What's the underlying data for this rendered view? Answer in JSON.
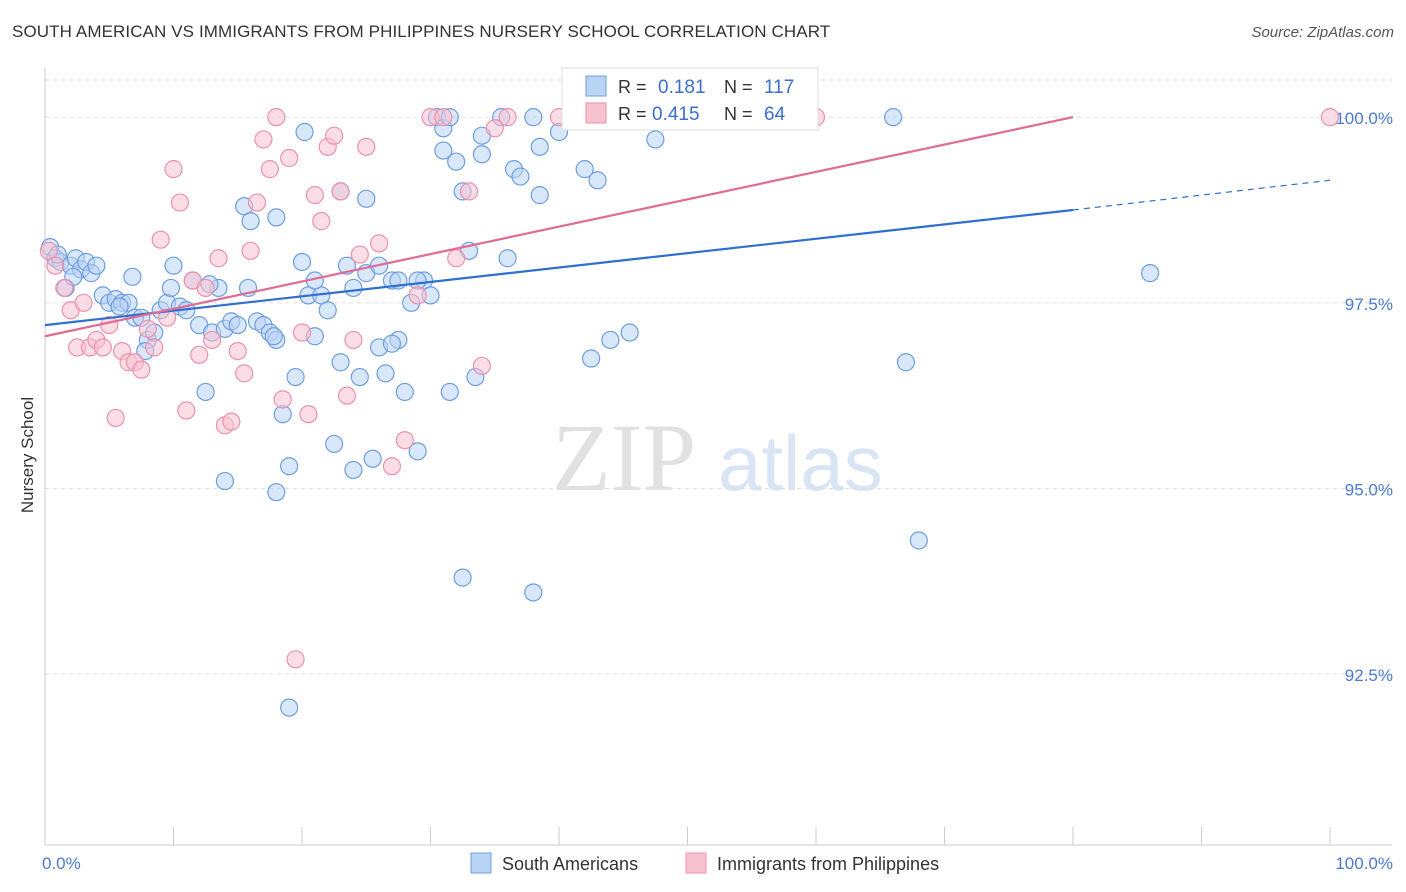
{
  "title": "SOUTH AMERICAN VS IMMIGRANTS FROM PHILIPPINES NURSERY SCHOOL CORRELATION CHART",
  "source": "Source: ZipAtlas.com",
  "watermark": {
    "zip": "ZIP",
    "atlas": "atlas"
  },
  "colors": {
    "blue_fill": "#b9d3f5",
    "blue_stroke": "#6e9ee0",
    "blue_line": "#2f6fd0",
    "pink_fill": "#f7c1d0",
    "pink_stroke": "#ec91ad",
    "pink_line": "#e06b94",
    "tick_text": "#4a7bd0",
    "grid": "#dddddd"
  },
  "legend_top": {
    "rows": [
      {
        "r_label": "R =",
        "r_value": "0.181",
        "n_label": "N =",
        "n_value": "117",
        "series": "blue"
      },
      {
        "r_label": "R =",
        "r_value": "0.415",
        "n_label": "N =",
        "n_value": "64",
        "series": "pink"
      }
    ]
  },
  "legend_bottom": [
    "South Americans",
    "Immigrants from Philippines"
  ],
  "chart_data": {
    "type": "scatter",
    "title": "SOUTH AMERICAN VS IMMIGRANTS FROM PHILIPPINES NURSERY SCHOOL CORRELATION CHART",
    "xlabel": "",
    "ylabel": "Nursery School",
    "xlim": [
      0,
      100
    ],
    "ylim": [
      90.2,
      100.5
    ],
    "x_tick_labels": [
      "0.0%",
      "100.0%"
    ],
    "y_ticks": [
      {
        "value": 100.0,
        "label": "100.0%"
      },
      {
        "value": 97.5,
        "label": "97.5%"
      },
      {
        "value": 95.0,
        "label": "95.0%"
      },
      {
        "value": 92.5,
        "label": "92.5%"
      }
    ],
    "series": [
      {
        "name": "South Americans",
        "color": "blue",
        "r": 0.181,
        "n": 117,
        "trend": {
          "x0": 0,
          "y0": 97.2,
          "x1": 80,
          "y1": 98.75,
          "dash_to_x": 100,
          "dash_to_y": 99.15
        },
        "points": [
          [
            0.4,
            98.25
          ],
          [
            0.8,
            98.1
          ],
          [
            1.2,
            98.05
          ],
          [
            1.6,
            97.7
          ],
          [
            2.0,
            98.0
          ],
          [
            2.4,
            98.1
          ],
          [
            2.8,
            97.95
          ],
          [
            3.2,
            98.05
          ],
          [
            3.6,
            97.9
          ],
          [
            4.0,
            98.0
          ],
          [
            4.5,
            97.6
          ],
          [
            5.0,
            97.5
          ],
          [
            5.5,
            97.55
          ],
          [
            6.0,
            97.5
          ],
          [
            6.5,
            97.5
          ],
          [
            6.8,
            97.85
          ],
          [
            7.0,
            97.3
          ],
          [
            7.5,
            97.3
          ],
          [
            8.0,
            97.0
          ],
          [
            8.5,
            97.1
          ],
          [
            9.0,
            97.4
          ],
          [
            9.5,
            97.5
          ],
          [
            10.0,
            98.0
          ],
          [
            10.5,
            97.45
          ],
          [
            11.0,
            97.4
          ],
          [
            11.5,
            97.8
          ],
          [
            12.0,
            97.2
          ],
          [
            12.5,
            96.3
          ],
          [
            13.0,
            97.1
          ],
          [
            13.5,
            97.7
          ],
          [
            14.0,
            97.15
          ],
          [
            14.5,
            97.25
          ],
          [
            15.0,
            97.2
          ],
          [
            15.5,
            98.8
          ],
          [
            16.0,
            98.6
          ],
          [
            16.5,
            97.25
          ],
          [
            17.0,
            97.2
          ],
          [
            17.5,
            97.1
          ],
          [
            18.0,
            97.0
          ],
          [
            18.5,
            96.0
          ],
          [
            19.0,
            95.3
          ],
          [
            19.5,
            96.5
          ],
          [
            20.0,
            98.05
          ],
          [
            20.5,
            97.6
          ],
          [
            21.0,
            97.05
          ],
          [
            21.5,
            97.6
          ],
          [
            22.0,
            97.4
          ],
          [
            22.5,
            95.6
          ],
          [
            23.0,
            96.7
          ],
          [
            23.5,
            98.0
          ],
          [
            24.0,
            97.7
          ],
          [
            24.5,
            96.5
          ],
          [
            25.0,
            97.9
          ],
          [
            25.5,
            95.4
          ],
          [
            26.0,
            96.9
          ],
          [
            26.5,
            96.55
          ],
          [
            27.0,
            97.8
          ],
          [
            27.5,
            97.0
          ],
          [
            28.0,
            96.3
          ],
          [
            28.5,
            97.5
          ],
          [
            29.0,
            95.5
          ],
          [
            29.5,
            97.8
          ],
          [
            30.0,
            97.6
          ],
          [
            30.5,
            100.0
          ],
          [
            31.0,
            99.85
          ],
          [
            31.5,
            100.0
          ],
          [
            32.0,
            99.4
          ],
          [
            32.5,
            99.0
          ],
          [
            33.0,
            98.2
          ],
          [
            33.5,
            96.5
          ],
          [
            34.0,
            99.5
          ],
          [
            35.5,
            100.0
          ],
          [
            36.5,
            99.3
          ],
          [
            37.0,
            99.2
          ],
          [
            38.0,
            100.0
          ],
          [
            38.5,
            99.6
          ],
          [
            40.0,
            99.8
          ],
          [
            42.0,
            99.3
          ],
          [
            43.0,
            99.15
          ],
          [
            44.0,
            97.0
          ],
          [
            46.0,
            100.0
          ],
          [
            1.0,
            98.15
          ],
          [
            2.2,
            97.85
          ],
          [
            5.8,
            97.45
          ],
          [
            7.8,
            96.85
          ],
          [
            9.8,
            97.7
          ],
          [
            12.8,
            97.75
          ],
          [
            15.8,
            97.7
          ],
          [
            17.8,
            97.05
          ],
          [
            20.2,
            99.8
          ],
          [
            23.0,
            99.0
          ],
          [
            25.0,
            98.9
          ],
          [
            18.0,
            98.65
          ],
          [
            21.0,
            97.8
          ],
          [
            26.0,
            98.0
          ],
          [
            27.5,
            97.8
          ],
          [
            29.0,
            97.8
          ],
          [
            31.0,
            99.55
          ],
          [
            34.0,
            99.75
          ],
          [
            36.0,
            98.1
          ],
          [
            38.5,
            98.95
          ],
          [
            42.5,
            96.75
          ],
          [
            45.5,
            97.1
          ],
          [
            47.5,
            99.7
          ],
          [
            52.0,
            100.0
          ],
          [
            66.0,
            100.0
          ],
          [
            86.0,
            97.9
          ],
          [
            67.0,
            96.7
          ],
          [
            68.0,
            94.3
          ],
          [
            32.5,
            93.8
          ],
          [
            38.0,
            93.6
          ],
          [
            19.0,
            92.05
          ],
          [
            18.0,
            94.95
          ],
          [
            14.0,
            95.1
          ],
          [
            24.0,
            95.25
          ],
          [
            27.0,
            96.95
          ],
          [
            31.5,
            96.3
          ]
        ]
      },
      {
        "name": "Immigrants from Philippines",
        "color": "pink",
        "r": 0.415,
        "n": 64,
        "trend": {
          "x0": 0,
          "y0": 97.05,
          "x1": 80,
          "y1": 100.0
        },
        "points": [
          [
            0.3,
            98.2
          ],
          [
            0.8,
            98.0
          ],
          [
            1.5,
            97.7
          ],
          [
            2.0,
            97.4
          ],
          [
            2.5,
            96.9
          ],
          [
            3.0,
            97.5
          ],
          [
            3.5,
            96.9
          ],
          [
            4.0,
            97.0
          ],
          [
            4.5,
            96.9
          ],
          [
            5.0,
            97.2
          ],
          [
            5.5,
            95.95
          ],
          [
            6.0,
            96.85
          ],
          [
            6.5,
            96.7
          ],
          [
            7.0,
            96.7
          ],
          [
            7.5,
            96.6
          ],
          [
            8.0,
            97.15
          ],
          [
            8.5,
            96.9
          ],
          [
            9.0,
            98.35
          ],
          [
            9.5,
            97.3
          ],
          [
            10.0,
            99.3
          ],
          [
            10.5,
            98.85
          ],
          [
            11.0,
            96.05
          ],
          [
            11.5,
            97.8
          ],
          [
            12.0,
            96.8
          ],
          [
            12.5,
            97.7
          ],
          [
            13.0,
            97.0
          ],
          [
            13.5,
            98.1
          ],
          [
            14.0,
            95.85
          ],
          [
            14.5,
            95.9
          ],
          [
            15.0,
            96.85
          ],
          [
            15.5,
            96.55
          ],
          [
            16.0,
            98.2
          ],
          [
            16.5,
            98.85
          ],
          [
            17.0,
            99.7
          ],
          [
            17.5,
            99.3
          ],
          [
            18.0,
            100.0
          ],
          [
            18.5,
            96.2
          ],
          [
            19.0,
            99.45
          ],
          [
            19.5,
            92.7
          ],
          [
            20.0,
            97.1
          ],
          [
            20.5,
            96.0
          ],
          [
            21.0,
            98.95
          ],
          [
            21.5,
            98.6
          ],
          [
            22.0,
            99.6
          ],
          [
            22.5,
            99.75
          ],
          [
            23.0,
            99.0
          ],
          [
            23.5,
            96.25
          ],
          [
            24.0,
            97.0
          ],
          [
            24.5,
            98.15
          ],
          [
            25.0,
            99.6
          ],
          [
            26.0,
            98.3
          ],
          [
            27.0,
            95.3
          ],
          [
            28.0,
            95.65
          ],
          [
            29.0,
            97.6
          ],
          [
            30.0,
            100.0
          ],
          [
            31.0,
            100.0
          ],
          [
            32.0,
            98.1
          ],
          [
            33.0,
            99.0
          ],
          [
            34.0,
            96.65
          ],
          [
            35.0,
            99.85
          ],
          [
            36.0,
            100.0
          ],
          [
            40.0,
            100.0
          ],
          [
            60.0,
            100.0
          ],
          [
            100.0,
            100.0
          ]
        ]
      }
    ]
  }
}
